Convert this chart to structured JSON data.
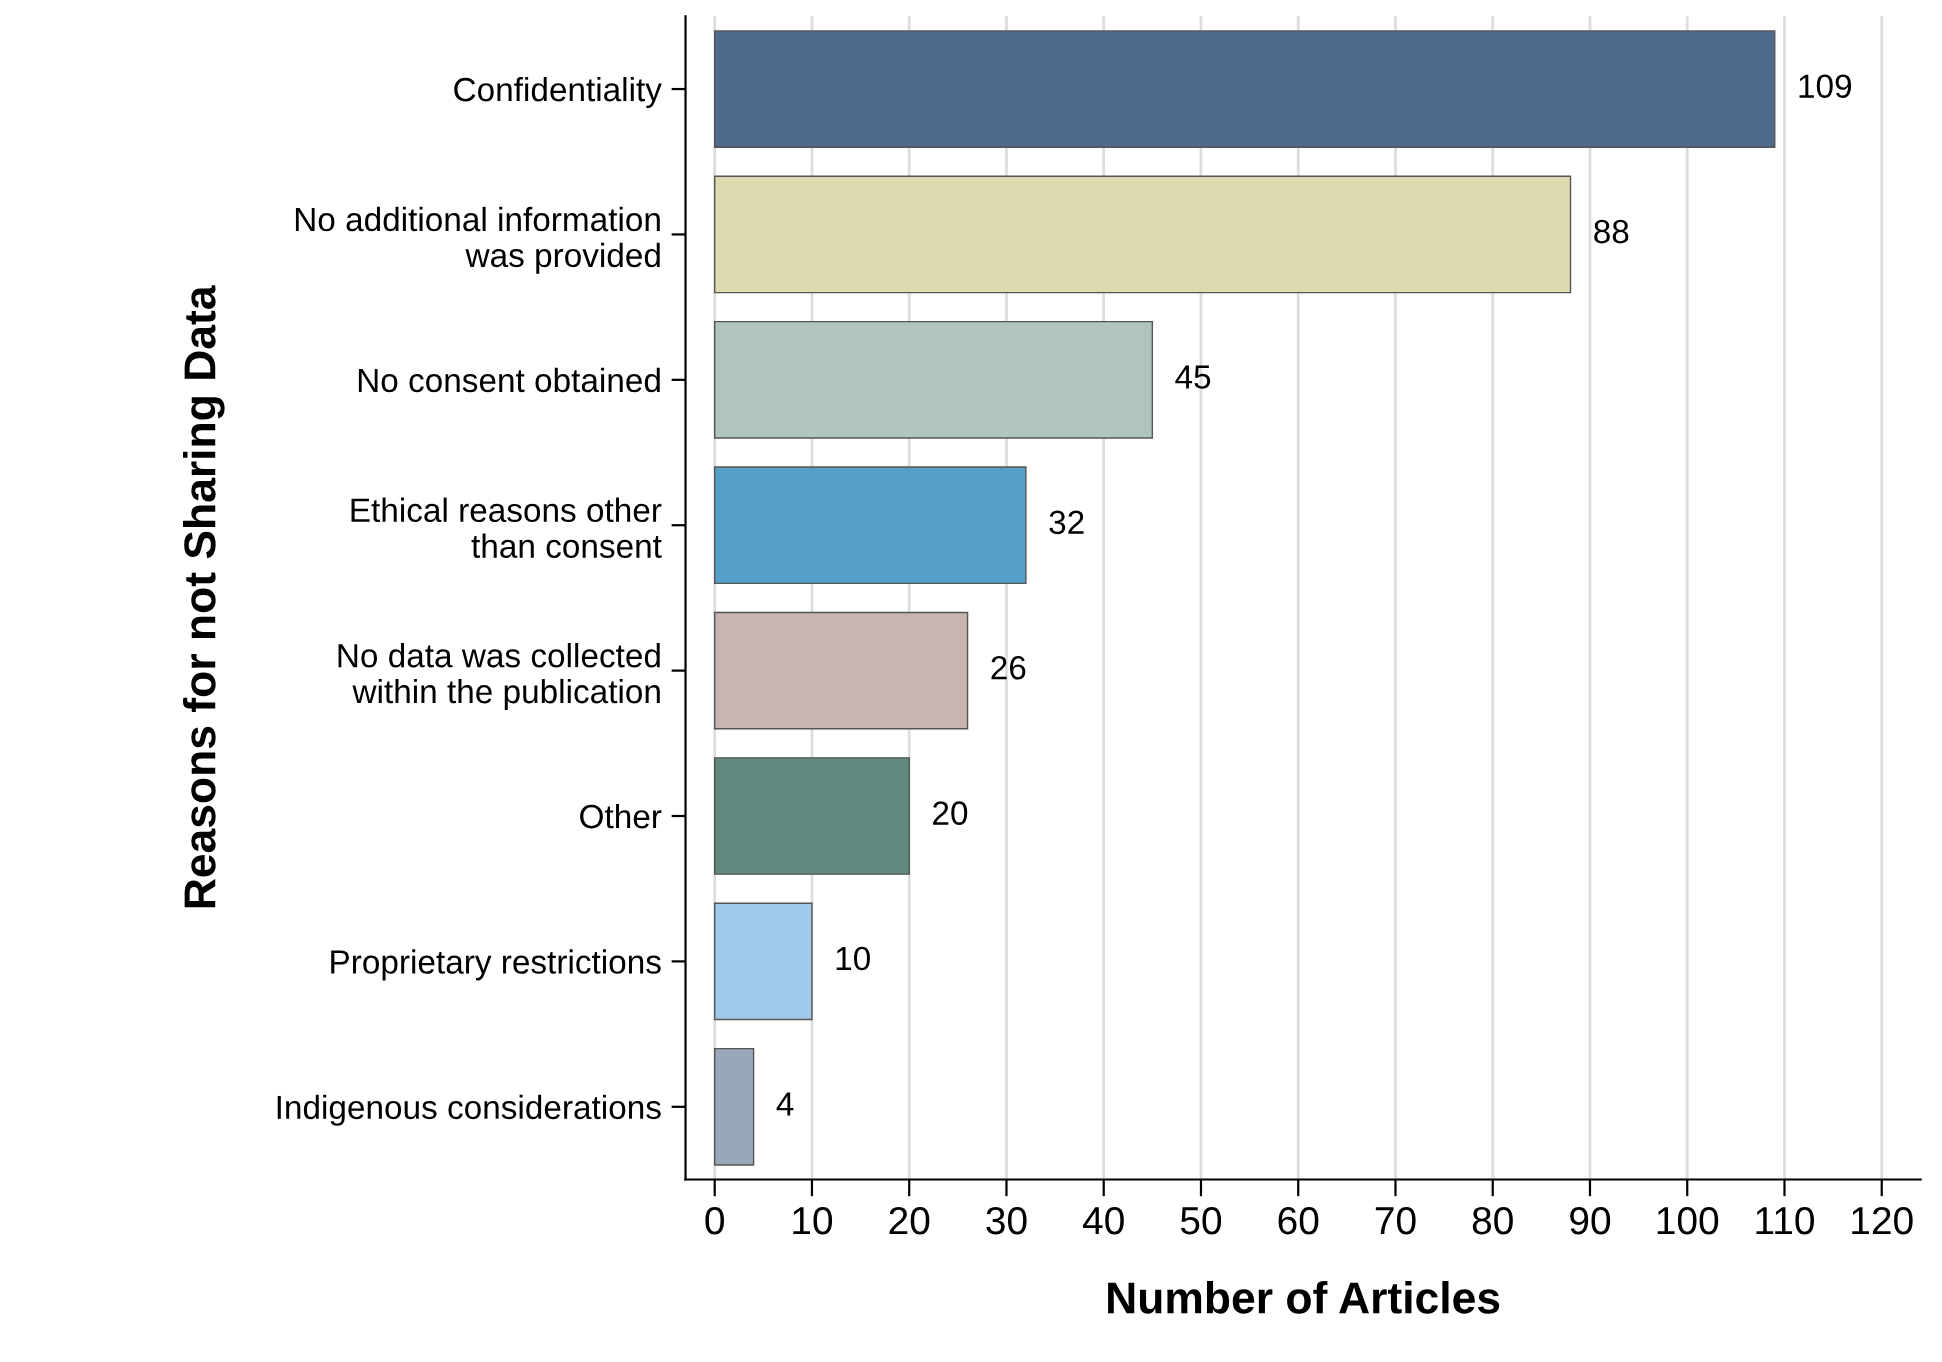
{
  "chart_data": {
    "type": "bar",
    "orientation": "horizontal",
    "xlabel": "Number of Articles",
    "ylabel": "Reasons for not Sharing Data",
    "categories": [
      "Confidentiality",
      "No additional information\nwas provided",
      "No consent obtained",
      "Ethical reasons other\nthan consent",
      "No data was collected\nwithin the publication",
      "Other",
      "Proprietary restrictions",
      "Indigenous considerations"
    ],
    "values": [
      109,
      88,
      45,
      32,
      26,
      20,
      10,
      4
    ],
    "colors": [
      "#4f6a8c",
      "#dedab0",
      "#b0c4c0",
      "#55a0c8",
      "#c8b4b0",
      "#608a80",
      "#a0c8e8",
      "#98a8b8"
    ],
    "xlim": [
      -3,
      124
    ],
    "xticks": [
      0,
      10,
      20,
      30,
      40,
      50,
      60,
      70,
      80,
      90,
      100,
      110,
      120
    ],
    "grid": "x",
    "data_labels": true
  }
}
